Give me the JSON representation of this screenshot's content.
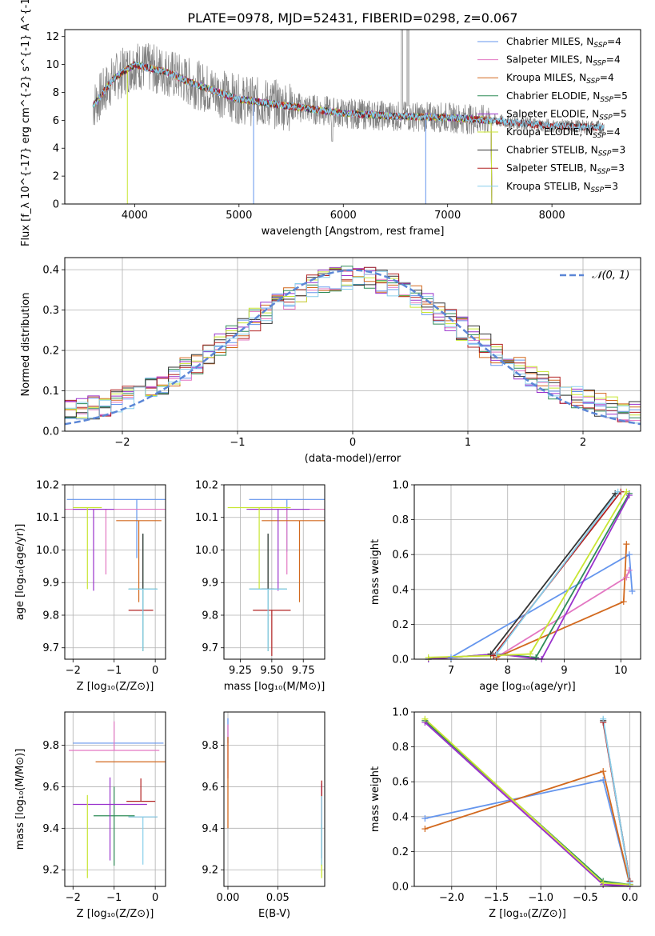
{
  "figure": {
    "title": "PLATE=0978, MJD=52431, FIBERID=0298, z=0.067"
  },
  "colors": {
    "data_gray": "#808080",
    "gauss_blue": "#5b86d6",
    "grid": "#b0b0b0"
  },
  "chart_data": [
    {
      "id": "spectrum",
      "type": "line",
      "title": "PLATE=0978, MJD=52431, FIBERID=0298, z=0.067",
      "xlabel": "wavelength [Angstrom, rest frame]",
      "ylabel": "Flux [f_λ 10^{-17} erg cm^{-2} s^{-1} A^{-1}]",
      "xlim": [
        3330,
        8850
      ],
      "ylim": [
        0,
        12.5
      ],
      "xticks": [
        "4000",
        "5000",
        "6000",
        "7000",
        "8000"
      ],
      "yticks": [
        "0",
        "2",
        "4",
        "6",
        "8",
        "10",
        "12"
      ],
      "grid": false,
      "legend_position": "top-right",
      "legend": [
        {
          "label": "Chabrier MILES, N",
          "sub": "SSP",
          "tail": "=4",
          "color": "#6495ed"
        },
        {
          "label": "Salpeter MILES, N",
          "sub": "SSP",
          "tail": "=4",
          "color": "#e377c2"
        },
        {
          "label": "Kroupa MILES, N",
          "sub": "SSP",
          "tail": "=4",
          "color": "#d2691e"
        },
        {
          "label": "Chabrier ELODIE, N",
          "sub": "SSP",
          "tail": "=5",
          "color": "#2e8b57"
        },
        {
          "label": "Salpeter ELODIE, N",
          "sub": "SSP",
          "tail": "=5",
          "color": "#9932cc"
        },
        {
          "label": "Kroupa ELODIE, N",
          "sub": "SSP",
          "tail": "=4",
          "color": "#c8e632"
        },
        {
          "label": "Chabrier STELIB, N",
          "sub": "SSP",
          "tail": "=3",
          "color": "#333333"
        },
        {
          "label": "Salpeter STELIB, N",
          "sub": "SSP",
          "tail": "=3",
          "color": "#b22222"
        },
        {
          "label": "Kroupa STELIB, N",
          "sub": "SSP",
          "tail": "=3",
          "color": "#87ceeb"
        }
      ],
      "continuum_points": [
        {
          "x": 3600,
          "y": 7.0
        },
        {
          "x": 3700,
          "y": 8.0
        },
        {
          "x": 3800,
          "y": 9.0
        },
        {
          "x": 3900,
          "y": 9.5
        },
        {
          "x": 4000,
          "y": 10.0
        },
        {
          "x": 4100,
          "y": 9.8
        },
        {
          "x": 4300,
          "y": 9.5
        },
        {
          "x": 4500,
          "y": 8.8
        },
        {
          "x": 5000,
          "y": 7.5
        },
        {
          "x": 5500,
          "y": 7.0
        },
        {
          "x": 6000,
          "y": 6.5
        },
        {
          "x": 6500,
          "y": 6.3
        },
        {
          "x": 7000,
          "y": 6.2
        },
        {
          "x": 7400,
          "y": 6.0
        },
        {
          "x": 8000,
          "y": 5.6
        },
        {
          "x": 8500,
          "y": 5.5
        }
      ]
    },
    {
      "id": "residuals",
      "type": "line",
      "xlabel": "(data-model)/error",
      "ylabel": "Normed distribution",
      "xlim": [
        -2.5,
        2.5
      ],
      "ylim": [
        0,
        0.43
      ],
      "xticks": [
        -2,
        -1,
        0,
        1,
        2
      ],
      "yticks": [
        0.0,
        0.1,
        0.2,
        0.3,
        0.4
      ],
      "grid": true,
      "legend_position": "top-right",
      "gauss_label": "𝒩(0, 1)"
    },
    {
      "id": "age_vs_Z",
      "type": "scatter",
      "xlabel": "Z [log₁₀(Z/Z⊙)]",
      "ylabel": "age  [log₁₀(age/yr)]",
      "xlim": [
        -2.2,
        0.25
      ],
      "ylim": [
        9.665,
        10.2
      ],
      "xticks": [
        -2,
        -1,
        0
      ],
      "yticks": [
        9.7,
        9.8,
        9.9,
        10.0,
        10.1,
        10.2
      ],
      "grid": true
    },
    {
      "id": "age_vs_mass",
      "type": "scatter",
      "xlabel": "mass [log₁₀(M/M⊙)]",
      "xlim": [
        9.12,
        9.92
      ],
      "ylim": [
        9.665,
        10.2
      ],
      "xticks": [
        9.25,
        9.5,
        9.75
      ],
      "yticks": [
        9.7,
        9.8,
        9.9,
        10.0,
        10.1,
        10.2
      ],
      "grid": true
    },
    {
      "id": "weight_vs_age",
      "type": "line",
      "xlabel": "age  [log₁₀(age/yr)]",
      "ylabel": "mass weight",
      "xlim": [
        6.35,
        10.35
      ],
      "ylim": [
        0,
        1
      ],
      "xticks": [
        7,
        8,
        9,
        10
      ],
      "yticks": [
        0.0,
        0.2,
        0.4,
        0.6,
        0.8,
        1.0
      ],
      "grid": true,
      "series": [
        {
          "color": "#6495ed",
          "points": [
            [
              7.0,
              0.01
            ],
            [
              10.15,
              0.6
            ],
            [
              10.2,
              0.39
            ]
          ]
        },
        {
          "color": "#e377c2",
          "points": [
            [
              7.8,
              0.01
            ],
            [
              10.1,
              0.47
            ],
            [
              10.15,
              0.51
            ]
          ]
        },
        {
          "color": "#d2691e",
          "points": [
            [
              7.8,
              0.01
            ],
            [
              10.05,
              0.33
            ],
            [
              10.1,
              0.66
            ]
          ]
        },
        {
          "color": "#2e8b57",
          "points": [
            [
              6.6,
              0.0
            ],
            [
              7.8,
              0.03
            ],
            [
              8.5,
              0.01
            ],
            [
              10.15,
              0.95
            ]
          ]
        },
        {
          "color": "#9932cc",
          "points": [
            [
              6.6,
              0.0
            ],
            [
              7.8,
              0.03
            ],
            [
              8.6,
              0.0
            ],
            [
              10.15,
              0.94
            ]
          ]
        },
        {
          "color": "#c8e632",
          "points": [
            [
              6.6,
              0.01
            ],
            [
              7.7,
              0.02
            ],
            [
              8.4,
              0.03
            ],
            [
              10.1,
              0.96
            ]
          ]
        },
        {
          "color": "#333333",
          "points": [
            [
              7.7,
              0.03
            ],
            [
              9.9,
              0.95
            ]
          ]
        },
        {
          "color": "#b22222",
          "points": [
            [
              7.75,
              0.02
            ],
            [
              10.0,
              0.96
            ]
          ]
        },
        {
          "color": "#87ceeb",
          "points": [
            [
              7.8,
              0.03
            ],
            [
              9.95,
              0.96
            ]
          ]
        }
      ]
    },
    {
      "id": "mass_vs_Z",
      "type": "scatter",
      "xlabel": "Z [log₁₀(Z/Z⊙)]",
      "ylabel": "mass [log₁₀(M/M⊙)]",
      "xlim": [
        -2.2,
        0.25
      ],
      "ylim": [
        9.12,
        9.96
      ],
      "xticks": [
        -2,
        -1,
        0
      ],
      "yticks": [
        9.2,
        9.4,
        9.6,
        9.8
      ],
      "grid": true
    },
    {
      "id": "mass_vs_ebv",
      "type": "scatter",
      "xlabel": "E(B-V)",
      "xlim": [
        -0.004,
        0.097
      ],
      "ylim": [
        9.12,
        9.96
      ],
      "xticks": [
        0.0,
        0.05
      ],
      "yticks": [
        9.2,
        9.4,
        9.6,
        9.8
      ],
      "grid": true
    },
    {
      "id": "weight_vs_Z",
      "type": "line",
      "xlabel": "Z [log₁₀(Z/Z⊙)]",
      "ylabel": "mass weight",
      "xlim": [
        -2.42,
        0.12
      ],
      "ylim": [
        0,
        1
      ],
      "xticks": [
        -2.0,
        -1.5,
        -1.0,
        -0.5,
        0.0
      ],
      "yticks": [
        0.0,
        0.2,
        0.4,
        0.6,
        0.8,
        1.0
      ],
      "grid": true,
      "series": [
        {
          "color": "#6495ed",
          "points": [
            [
              -2.3,
              0.39
            ],
            [
              -0.3,
              0.61
            ],
            [
              0.0,
              0.01
            ]
          ]
        },
        {
          "color": "#d2691e",
          "points": [
            [
              -2.3,
              0.33
            ],
            [
              -0.3,
              0.66
            ],
            [
              0.0,
              0.01
            ]
          ]
        },
        {
          "color": "#e377c2",
          "points": [
            [
              -2.3,
              0.95
            ],
            [
              -0.3,
              0.01
            ],
            [
              0.0,
              0.01
            ]
          ]
        },
        {
          "color": "#2e8b57",
          "points": [
            [
              -2.3,
              0.95
            ],
            [
              -0.3,
              0.03
            ],
            [
              0.0,
              0.01
            ]
          ]
        },
        {
          "color": "#9932cc",
          "points": [
            [
              -2.3,
              0.94
            ],
            [
              -0.3,
              0.01
            ],
            [
              0.0,
              0.0
            ]
          ]
        },
        {
          "color": "#c8e632",
          "points": [
            [
              -2.3,
              0.96
            ],
            [
              -0.3,
              0.02
            ],
            [
              0.0,
              0.01
            ]
          ]
        },
        {
          "color": "#333333",
          "points": [
            [
              -0.3,
              0.95
            ],
            [
              0.0,
              0.03
            ]
          ]
        },
        {
          "color": "#b22222",
          "points": [
            [
              -0.3,
              0.94
            ],
            [
              0.0,
              0.03
            ]
          ]
        },
        {
          "color": "#87ceeb",
          "points": [
            [
              -0.3,
              0.96
            ],
            [
              0.0,
              0.02
            ]
          ]
        }
      ]
    }
  ]
}
